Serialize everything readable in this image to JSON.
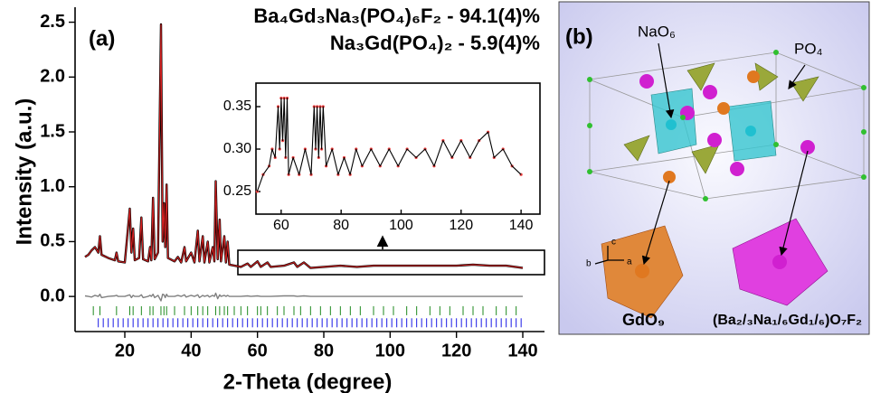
{
  "chart_data": [
    {
      "type": "line",
      "panel_label": "(a)",
      "xlabel": "2-Theta (degree)",
      "ylabel": "Intensity (a.u.)",
      "x": [
        8,
        9,
        10,
        11,
        12,
        12.5,
        13,
        15,
        17,
        17.5,
        18,
        20,
        21.5,
        22,
        22.5,
        23,
        24.3,
        25,
        25.5,
        27,
        27.6,
        28,
        28.5,
        29,
        30,
        30.9,
        31.4,
        31.8,
        32.2,
        32.6,
        33,
        35,
        36,
        37,
        38,
        38.5,
        40,
        41,
        42,
        42.5,
        43.5,
        44,
        45,
        45.5,
        46.5,
        47,
        47.4,
        48,
        48.6,
        49,
        50,
        50.5,
        51,
        51.5,
        55,
        57,
        58,
        60,
        61,
        63,
        64,
        68,
        71,
        72,
        74,
        76,
        80,
        85,
        90,
        95,
        100,
        105,
        110,
        115,
        120,
        125,
        130,
        135,
        140
      ],
      "series": [
        {
          "color": "#000000",
          "style": "line",
          "width": 2.4,
          "values": [
            0.36,
            0.38,
            0.42,
            0.45,
            0.4,
            0.55,
            0.38,
            0.35,
            0.33,
            0.4,
            0.32,
            0.31,
            0.8,
            0.4,
            0.62,
            0.33,
            0.35,
            0.72,
            0.34,
            0.32,
            0.45,
            0.33,
            0.9,
            0.34,
            0.4,
            2.48,
            0.5,
            0.85,
            0.45,
            1.02,
            0.35,
            0.32,
            0.36,
            0.31,
            0.45,
            0.32,
            0.4,
            0.31,
            0.6,
            0.32,
            0.55,
            0.31,
            0.5,
            0.31,
            0.45,
            0.32,
            1.05,
            0.34,
            0.7,
            0.32,
            0.55,
            0.31,
            0.5,
            0.29,
            0.27,
            0.3,
            0.27,
            0.32,
            0.27,
            0.31,
            0.27,
            0.28,
            0.31,
            0.27,
            0.31,
            0.26,
            0.27,
            0.28,
            0.27,
            0.28,
            0.28,
            0.28,
            0.28,
            0.28,
            0.28,
            0.29,
            0.28,
            0.28,
            0.26
          ]
        },
        {
          "color": "#d42020",
          "style": "line",
          "width": 1.1,
          "values": [
            0.36,
            0.38,
            0.42,
            0.45,
            0.4,
            0.55,
            0.38,
            0.35,
            0.33,
            0.4,
            0.32,
            0.31,
            0.8,
            0.4,
            0.62,
            0.33,
            0.35,
            0.72,
            0.34,
            0.32,
            0.45,
            0.33,
            0.9,
            0.34,
            0.4,
            2.48,
            0.5,
            0.85,
            0.45,
            1.02,
            0.35,
            0.32,
            0.36,
            0.31,
            0.45,
            0.32,
            0.4,
            0.31,
            0.6,
            0.32,
            0.55,
            0.31,
            0.5,
            0.31,
            0.45,
            0.32,
            1.05,
            0.34,
            0.7,
            0.32,
            0.55,
            0.31,
            0.5,
            0.29,
            0.27,
            0.3,
            0.27,
            0.32,
            0.27,
            0.31,
            0.27,
            0.28,
            0.31,
            0.27,
            0.31,
            0.26,
            0.27,
            0.28,
            0.27,
            0.28,
            0.28,
            0.28,
            0.28,
            0.28,
            0.28,
            0.29,
            0.28,
            0.28,
            0.26
          ]
        },
        {
          "color": "#808080",
          "style": "line",
          "width": 1.4,
          "values": [
            0.005,
            0,
            -0.005,
            0.01,
            0,
            0.02,
            -0.01,
            0,
            0.005,
            0.01,
            0,
            0,
            0.015,
            -0.01,
            0.01,
            0,
            0,
            0.015,
            -0.01,
            0,
            0.01,
            0,
            0.02,
            -0.01,
            0.01,
            -0.04,
            0.02,
            0.015,
            -0.01,
            0.02,
            0,
            0,
            0.01,
            0,
            0.015,
            -0.005,
            0.01,
            0,
            0.015,
            -0.01,
            0.01,
            0,
            0.01,
            -0.005,
            0.01,
            0,
            0.03,
            -0.02,
            0.015,
            0,
            0.01,
            0,
            0.01,
            0,
            0,
            0.005,
            0,
            0.005,
            0,
            0,
            0,
            0.005,
            0.005,
            0,
            0.005,
            0,
            0,
            0,
            0,
            0,
            0,
            0,
            0,
            0,
            0,
            0,
            0,
            0,
            0
          ]
        },
        {
          "name": "Ba₄Gd₃Na₃(PO₄)₆F₂ - 94.1(4)%",
          "color": "#1e8a1e",
          "style": "ticks",
          "y": -0.13,
          "x": [
            10.5,
            12.5,
            17.5,
            21.5,
            22.5,
            25,
            27.6,
            28.5,
            30.9,
            31.8,
            32.6,
            35,
            38,
            40,
            42,
            43.5,
            45,
            47.4,
            48.6,
            50,
            51,
            53,
            55,
            57,
            60,
            61,
            63,
            66,
            68,
            71,
            73,
            76,
            79,
            82,
            85,
            88,
            91,
            95,
            98,
            101,
            105,
            108,
            112,
            115,
            118,
            122,
            125,
            128,
            132,
            135,
            138
          ]
        },
        {
          "name": "Na₃Gd(PO₄)₂ - 5.9(4)%",
          "color": "#1a1ae6",
          "style": "ticks",
          "y": -0.24,
          "x": [
            12,
            13.5,
            15,
            16.5,
            18,
            19.5,
            21,
            22.5,
            24,
            25.5,
            27,
            28.5,
            30,
            31.5,
            33,
            34.5,
            36,
            37.5,
            39,
            40.5,
            42,
            43.5,
            45,
            46.5,
            48,
            49.5,
            51,
            52.5,
            54,
            55.5,
            57,
            58.5,
            60,
            61.5,
            63,
            64.5,
            66,
            67.5,
            69,
            70.5,
            72,
            73.5,
            75,
            76.5,
            78,
            79.5,
            81,
            82.5,
            84,
            85.5,
            87,
            88.5,
            90,
            91.5,
            93,
            94.5,
            96,
            97.5,
            99,
            100.5,
            102,
            103.5,
            105,
            106.5,
            108,
            109.5,
            111,
            112.5,
            114,
            115.5,
            117,
            118.5,
            120,
            121.5,
            123,
            124.5,
            126,
            127.5,
            129,
            130.5,
            132,
            133.5,
            135,
            136.5,
            138,
            139.5
          ]
        }
      ],
      "xlim": [
        5,
        146
      ],
      "ylim": [
        -0.32,
        2.62
      ],
      "xticks": [
        20,
        40,
        60,
        80,
        100,
        120,
        140
      ],
      "yticks": [
        {
          "value": 0,
          "label": "0.0"
        },
        0.5,
        {
          "value": 1,
          "label": "1.0"
        },
        1.5,
        {
          "value": 2,
          "label": "2.0"
        },
        2.5
      ]
    },
    {
      "type": "line",
      "x": [
        52,
        54,
        56,
        57,
        58,
        59,
        59.5,
        60,
        60.5,
        61,
        61.5,
        62,
        62.5,
        64,
        66,
        68,
        70,
        71,
        71.5,
        72,
        72.5,
        73,
        73.5,
        74,
        75,
        77,
        79,
        81,
        83,
        85,
        87,
        90,
        93,
        96,
        99,
        102,
        105,
        108,
        111,
        114,
        117,
        120,
        123,
        126,
        129,
        131,
        134,
        137,
        140
      ],
      "series": [
        {
          "color": "#f04040",
          "style": "dots",
          "values": [
            0.25,
            0.27,
            0.28,
            0.3,
            0.29,
            0.35,
            0.3,
            0.36,
            0.31,
            0.36,
            0.29,
            0.36,
            0.27,
            0.29,
            0.27,
            0.3,
            0.27,
            0.35,
            0.3,
            0.35,
            0.29,
            0.35,
            0.3,
            0.35,
            0.28,
            0.3,
            0.27,
            0.29,
            0.27,
            0.3,
            0.28,
            0.3,
            0.28,
            0.3,
            0.28,
            0.3,
            0.29,
            0.3,
            0.28,
            0.31,
            0.29,
            0.31,
            0.29,
            0.31,
            0.32,
            0.29,
            0.3,
            0.28,
            0.27
          ]
        },
        {
          "color": "#000000",
          "style": "line",
          "width": 1.1,
          "values": [
            0.25,
            0.27,
            0.28,
            0.3,
            0.29,
            0.35,
            0.3,
            0.36,
            0.31,
            0.36,
            0.29,
            0.36,
            0.27,
            0.29,
            0.27,
            0.3,
            0.27,
            0.35,
            0.3,
            0.35,
            0.29,
            0.35,
            0.3,
            0.35,
            0.28,
            0.3,
            0.27,
            0.29,
            0.27,
            0.3,
            0.28,
            0.3,
            0.28,
            0.3,
            0.28,
            0.3,
            0.29,
            0.3,
            0.28,
            0.31,
            0.29,
            0.31,
            0.29,
            0.31,
            0.32,
            0.29,
            0.3,
            0.28,
            0.27
          ]
        }
      ],
      "xlim": [
        51.6,
        146.3
      ],
      "ylim": [
        0.2234,
        0.3777
      ],
      "xticks": [
        60,
        80,
        100,
        120,
        140
      ],
      "yticks": [
        0.25,
        {
          "value": 0.3,
          "label": "0.30"
        },
        0.35
      ]
    }
  ],
  "structure_panel": {
    "label": "(b)",
    "annotations": [
      "NaO₆",
      "PO₄",
      "GdO₉",
      "(Ba₂/₃Na₁/₆Gd₁/₆)O₇F₂"
    ],
    "axes": [
      "c",
      "b",
      "a"
    ]
  }
}
